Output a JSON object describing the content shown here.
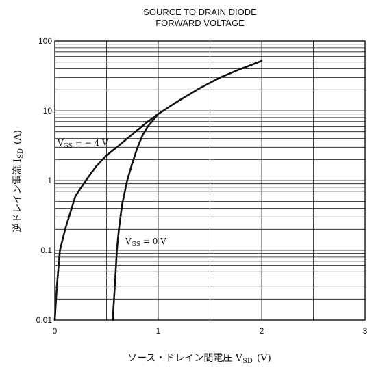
{
  "chart_data": {
    "type": "line",
    "title": [
      "SOURCE TO DRAIN DIODE",
      "FORWARD VOLTAGE"
    ],
    "xlabel": "ソース・ドレイン間電圧  V",
    "xlabel_sub": "SD",
    "xlabel_unit": "(V)",
    "ylabel": "逆ドレイン電流  I",
    "ylabel_sub": "SD",
    "ylabel_unit": "(A)",
    "xlim": [
      0,
      3
    ],
    "ylim": [
      0.01,
      100
    ],
    "yscale": "log",
    "grid": true,
    "xticks": [
      0,
      1,
      2,
      3
    ],
    "xtick_labels": [
      "0",
      "1",
      "2",
      "3"
    ],
    "yticks": [
      0.01,
      0.1,
      1,
      10,
      100
    ],
    "ytick_labels": [
      "0.01",
      "0.1",
      "1",
      "10",
      "100"
    ],
    "series": [
      {
        "name": "VGS = −4 V",
        "label_main": "V",
        "label_sub": "GS",
        "label_rest": " = − 4 V",
        "x": [
          0.0,
          0.02,
          0.05,
          0.1,
          0.2,
          0.3,
          0.4,
          0.5,
          0.6,
          0.7,
          0.8,
          0.9,
          1.0,
          1.2,
          1.4,
          1.6,
          1.8,
          2.0
        ],
        "y": [
          0.01,
          0.03,
          0.1,
          0.2,
          0.6,
          1.0,
          1.6,
          2.3,
          3.0,
          4.0,
          5.3,
          7.0,
          9.0,
          14,
          21,
          30,
          40,
          52
        ]
      },
      {
        "name": "VGS = 0 V",
        "label_main": "V",
        "label_sub": "GS",
        "label_rest": " = 0 V",
        "x": [
          0.56,
          0.58,
          0.6,
          0.62,
          0.65,
          0.7,
          0.75,
          0.8,
          0.85,
          0.9,
          0.95,
          1.0
        ],
        "y": [
          0.01,
          0.03,
          0.1,
          0.2,
          0.45,
          1.0,
          1.8,
          3.0,
          4.5,
          6.0,
          7.3,
          9.0
        ]
      }
    ]
  }
}
